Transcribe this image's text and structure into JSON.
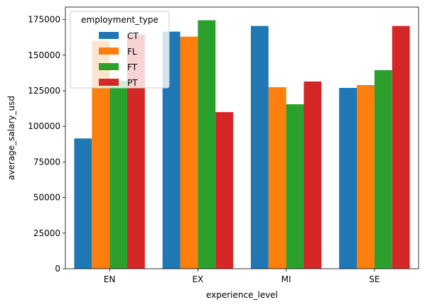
{
  "chart_data": {
    "type": "bar",
    "title": "",
    "xlabel": "experience_level",
    "ylabel": "average_salary_usd",
    "categories": [
      "EN",
      "EX",
      "MI",
      "SE"
    ],
    "series": [
      {
        "name": "CT",
        "values": [
          91500,
          166500,
          170500,
          127000
        ]
      },
      {
        "name": "FL",
        "values": [
          160000,
          163000,
          127500,
          129000
        ]
      },
      {
        "name": "FT",
        "values": [
          132000,
          174500,
          115500,
          139500
        ]
      },
      {
        "name": "PT",
        "values": [
          164500,
          110000,
          131500,
          170500
        ]
      }
    ],
    "colors": [
      "#1f77b4",
      "#ff7f0e",
      "#2ca02c",
      "#d62728"
    ],
    "ylim": [
      0,
      183750
    ],
    "yticks": [
      0,
      25000,
      50000,
      75000,
      100000,
      125000,
      150000,
      175000
    ],
    "grid": false,
    "legend": {
      "title": "employment_type",
      "position": "top-left"
    }
  }
}
